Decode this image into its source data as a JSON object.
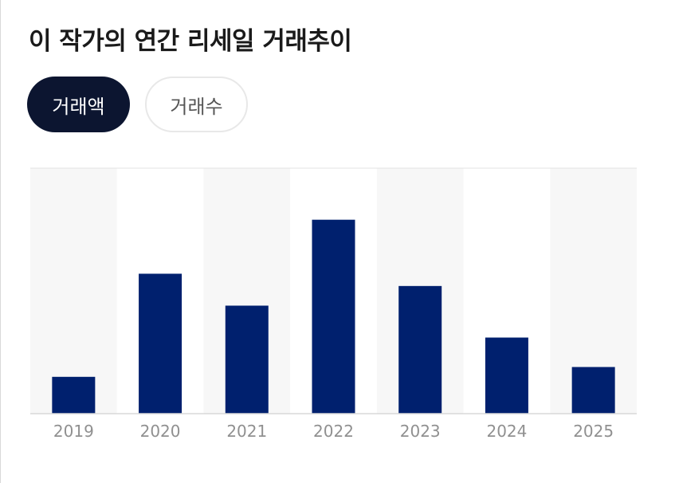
{
  "header": {
    "title": "이 작가의 연간 리세일 거래추이"
  },
  "tabs": [
    {
      "label": "거래액",
      "active": true
    },
    {
      "label": "거래수",
      "active": false
    }
  ],
  "colors": {
    "bar": "#00206e",
    "band": "#f7f7f7",
    "axis": "#d9d9d9",
    "active_tab": "#0c1530"
  },
  "chart_data": {
    "type": "bar",
    "categories": [
      "2019",
      "2020",
      "2021",
      "2022",
      "2023",
      "2024",
      "2025"
    ],
    "values": [
      15,
      57,
      44,
      79,
      52,
      31,
      19
    ],
    "title": "",
    "xlabel": "",
    "ylabel": "",
    "ylim": [
      0,
      100
    ],
    "grid": false
  }
}
